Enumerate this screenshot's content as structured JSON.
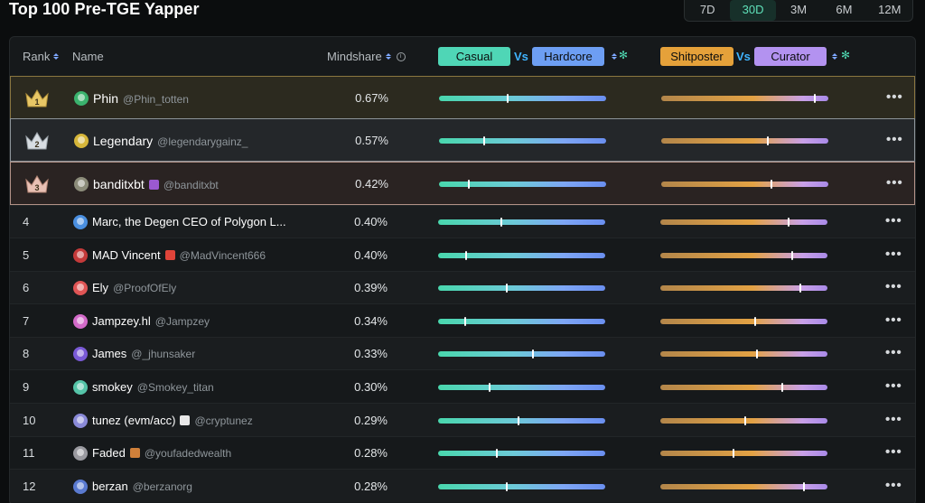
{
  "page": {
    "title": "Top 100 Pre-TGE Yapper"
  },
  "period_tabs": [
    "7D",
    "30D",
    "3M",
    "6M",
    "12M"
  ],
  "active_period": "30D",
  "columns": {
    "rank": "Rank",
    "name": "Name",
    "mindshare": "Mindshare",
    "casual": "Casual",
    "vs1": "Vs",
    "hardcore": "Hardcore",
    "shitposter": "Shitposter",
    "vs2": "Vs",
    "curator": "Curator"
  },
  "colors": {
    "casual_pill": "#4fd6b6",
    "hardcore_pill": "#6d9ef3",
    "shitposter_pill": "#e5a13a",
    "curator_pill": "#b392f0",
    "accent_green": "#5fe0b9",
    "vs_blue": "#3fb4ff"
  },
  "rows": [
    {
      "rank": "1",
      "name": "Phin",
      "handle": "@Phin_totten",
      "mindshare": "0.67%",
      "casual_hardcore": 0.41,
      "shitposter_curator": 0.92,
      "crown": "gold",
      "avatar": "#3bb36e",
      "emoji": ""
    },
    {
      "rank": "2",
      "name": "Legendary",
      "handle": "@legendarygainz_",
      "mindshare": "0.57%",
      "casual_hardcore": 0.27,
      "shitposter_curator": 0.64,
      "crown": "silver",
      "avatar": "#d6b63a",
      "emoji": ""
    },
    {
      "rank": "3",
      "name": "banditxbt",
      "handle": "@banditxbt",
      "mindshare": "0.42%",
      "casual_hardcore": 0.18,
      "shitposter_curator": 0.66,
      "crown": "bronze",
      "avatar": "#8c8c7a",
      "emoji": "#9b59d0"
    },
    {
      "rank": "4",
      "name": "Marc, the Degen CEO of Polygon L...",
      "handle": "",
      "mindshare": "0.40%",
      "casual_hardcore": 0.38,
      "shitposter_curator": 0.77,
      "crown": "",
      "avatar": "#4a8fe0",
      "emoji": ""
    },
    {
      "rank": "5",
      "name": "MAD Vincent",
      "handle": "@MadVincent666",
      "mindshare": "0.40%",
      "casual_hardcore": 0.17,
      "shitposter_curator": 0.79,
      "crown": "",
      "avatar": "#c43a3a",
      "emoji": "#e0443a"
    },
    {
      "rank": "6",
      "name": "Ely",
      "handle": "@ProofOfEly",
      "mindshare": "0.39%",
      "casual_hardcore": 0.41,
      "shitposter_curator": 0.84,
      "crown": "",
      "avatar": "#e05555",
      "emoji": ""
    },
    {
      "rank": "7",
      "name": "Jampzey.hl",
      "handle": "@Jampzey",
      "mindshare": "0.34%",
      "casual_hardcore": 0.16,
      "shitposter_curator": 0.57,
      "crown": "",
      "avatar": "#d36ac9",
      "emoji": ""
    },
    {
      "rank": "8",
      "name": "James",
      "handle": "@_jhunsaker",
      "mindshare": "0.33%",
      "casual_hardcore": 0.57,
      "shitposter_curator": 0.58,
      "crown": "",
      "avatar": "#7a5ad6",
      "emoji": ""
    },
    {
      "rank": "9",
      "name": "smokey",
      "handle": "@Smokey_titan",
      "mindshare": "0.30%",
      "casual_hardcore": 0.31,
      "shitposter_curator": 0.73,
      "crown": "",
      "avatar": "#55c4a8",
      "emoji": ""
    },
    {
      "rank": "10",
      "name": "tunez (evm/acc)",
      "handle": "@cryptunez",
      "mindshare": "0.29%",
      "casual_hardcore": 0.48,
      "shitposter_curator": 0.51,
      "crown": "",
      "avatar": "#8a8ad8",
      "emoji": "#e8e8e8"
    },
    {
      "rank": "11",
      "name": "Faded",
      "handle": "@youfadedwealth",
      "mindshare": "0.28%",
      "casual_hardcore": 0.35,
      "shitposter_curator": 0.44,
      "crown": "",
      "avatar": "#9a9aa0",
      "emoji": "#d0803a"
    },
    {
      "rank": "12",
      "name": "berzan",
      "handle": "@berzanorg",
      "mindshare": "0.28%",
      "casual_hardcore": 0.41,
      "shitposter_curator": 0.86,
      "crown": "",
      "avatar": "#5a7ad0",
      "emoji": ""
    }
  ]
}
